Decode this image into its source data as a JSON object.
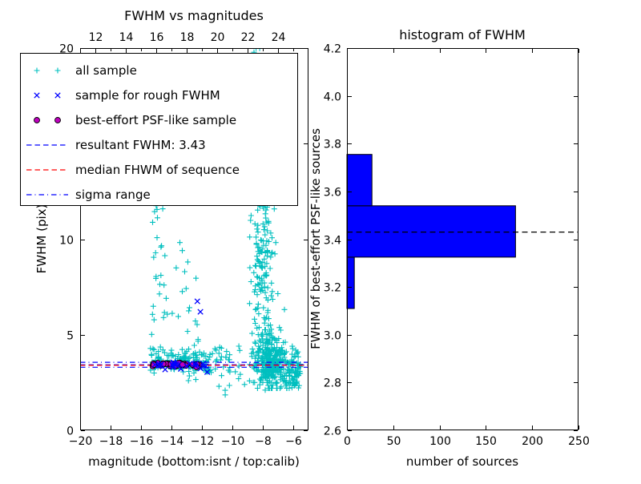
{
  "figure": {
    "bg": "#ffffff"
  },
  "chart_data": [
    {
      "type": "scatter",
      "title": "FWHM vs magnitudes",
      "xlabel": "magnitude (bottom:isnt / top:calib)",
      "ylabel": "FWHM (pix)",
      "xlim": [
        -20,
        -5
      ],
      "ylim": [
        0,
        20
      ],
      "grid": false,
      "x_ticks": [
        {
          "v": -20,
          "label": "−20"
        },
        {
          "v": -18,
          "label": "−18"
        },
        {
          "v": -16,
          "label": "−16"
        },
        {
          "v": -14,
          "label": "−14"
        },
        {
          "v": -12,
          "label": "−12"
        },
        {
          "v": -10,
          "label": "−10"
        },
        {
          "v": -8,
          "label": "−8"
        },
        {
          "v": -6,
          "label": "−6"
        }
      ],
      "y_ticks": [
        {
          "v": 0,
          "label": "0"
        },
        {
          "v": 5,
          "label": "5"
        },
        {
          "v": 10,
          "label": "10"
        },
        {
          "v": 15,
          "label": "15"
        },
        {
          "v": 20,
          "label": "20"
        }
      ],
      "top_axis": {
        "offset": 31,
        "ticks": [
          {
            "v": 12,
            "label": "12"
          },
          {
            "v": 14,
            "label": "14"
          },
          {
            "v": 16,
            "label": "16"
          },
          {
            "v": 18,
            "label": "18"
          },
          {
            "v": 20,
            "label": "20"
          },
          {
            "v": 22,
            "label": "22"
          },
          {
            "v": 24,
            "label": "24"
          }
        ],
        "minor": [
          13,
          15,
          17,
          19,
          21,
          23,
          25
        ]
      },
      "legend": [
        {
          "label": "all sample",
          "marker": "plus",
          "color": "#00bfbf"
        },
        {
          "label": "sample for rough FWHM",
          "marker": "x",
          "color": "#0000ff"
        },
        {
          "label": "best-effort PSF-like sample",
          "marker": "circle",
          "color": "#bf00bf"
        },
        {
          "label": "resultant FWHM: 3.43",
          "marker": "dashed-line",
          "color": "#0000ff"
        },
        {
          "label": "median FHWM of sequence",
          "marker": "dashed-line",
          "color": "#ff0000"
        },
        {
          "label": "sigma range",
          "marker": "dashdot-line",
          "color": "#0000ff"
        }
      ],
      "hlines": [
        {
          "name": "resultant-fwhm-line",
          "y": 3.43,
          "style": "dashed",
          "color": "#0000ff"
        },
        {
          "name": "median-fwhm-line",
          "y": 3.4,
          "style": "dashed",
          "color": "#ff0000"
        },
        {
          "name": "sigma-upper-line",
          "y": 3.56,
          "style": "dashdot",
          "color": "#0000ff"
        },
        {
          "name": "sigma-lower-line",
          "y": 3.3,
          "style": "dashdot",
          "color": "#0000ff"
        }
      ],
      "resultant_fwhm": 3.43,
      "seed": 11,
      "series": [
        {
          "name": "all sample",
          "marker": "plus",
          "color": "#00bfbf",
          "clusters": [
            {
              "n": 150,
              "x": {
                "dist": "uniform",
                "min": -15.4,
                "max": -11.4
              },
              "y": {
                "dist": "normal",
                "mean": 3.55,
                "sd": 0.3,
                "clip": [
                  2.6,
                  4.8
                ]
              }
            },
            {
              "n": 26,
              "x": {
                "dist": "uniform",
                "min": -15.3,
                "max": -14.4
              },
              "y": {
                "dist": "uniform",
                "min": 3.8,
                "max": 12.0
              }
            },
            {
              "n": 18,
              "x": {
                "dist": "uniform",
                "min": -13.3,
                "max": -12.2
              },
              "y": {
                "dist": "uniform",
                "min": 3.8,
                "max": 9.8
              }
            },
            {
              "n": 6,
              "x": {
                "dist": "uniform",
                "min": -14.4,
                "max": -13.3
              },
              "y": {
                "dist": "uniform",
                "min": 4.0,
                "max": 11.5
              }
            },
            {
              "n": 260,
              "x": {
                "dist": "normal",
                "mean": -7.6,
                "sd": 0.5
              },
              "y": {
                "dist": "normal",
                "mean": 3.6,
                "sd": 0.7,
                "clip": [
                  2.2,
                  6.0
                ]
              }
            },
            {
              "n": 160,
              "x": {
                "dist": "normal",
                "mean": -8.0,
                "sd": 0.45
              },
              "y": {
                "dist": "uniform",
                "min": 5.0,
                "max": 13.0
              }
            },
            {
              "n": 70,
              "x": {
                "dist": "normal",
                "mean": -8.3,
                "sd": 0.35
              },
              "y": {
                "dist": "uniform",
                "min": 12.0,
                "max": 20.0
              }
            },
            {
              "n": 90,
              "x": {
                "dist": "uniform",
                "min": -7.2,
                "max": -5.6
              },
              "y": {
                "dist": "normal",
                "mean": 3.2,
                "sd": 0.6,
                "clip": [
                  2.2,
                  5.5
                ]
              }
            },
            {
              "n": 30,
              "x": {
                "dist": "uniform",
                "min": -6.5,
                "max": -5.4
              },
              "y": {
                "dist": "uniform",
                "min": 2.2,
                "max": 3.6
              }
            },
            {
              "n": 30,
              "x": {
                "dist": "uniform",
                "min": -11.4,
                "max": -9.2
              },
              "y": {
                "dist": "normal",
                "mean": 3.5,
                "sd": 0.5,
                "clip": [
                  2.4,
                  5.5
                ]
              }
            },
            {
              "n": 5,
              "x": {
                "dist": "uniform",
                "min": -11.5,
                "max": -7.0
              },
              "y": {
                "dist": "uniform",
                "min": 1.8,
                "max": 2.4
              }
            }
          ]
        },
        {
          "name": "sample for rough FWHM",
          "marker": "x",
          "color": "#0000ff",
          "clusters": [
            {
              "n": 26,
              "x": {
                "dist": "uniform",
                "min": -15.2,
                "max": -11.6
              },
              "y": {
                "dist": "normal",
                "mean": 3.45,
                "sd": 0.1
              }
            }
          ],
          "points": [
            [
              -12.3,
              6.75
            ],
            [
              -12.1,
              6.2
            ],
            [
              -11.65,
              3.05
            ]
          ]
        },
        {
          "name": "best-effort PSF-like sample",
          "marker": "circle",
          "color": "#bf00bf",
          "edge": "#000000",
          "clusters": [
            {
              "n": 34,
              "x": {
                "dist": "uniform",
                "min": -15.25,
                "max": -11.9
              },
              "y": {
                "dist": "normal",
                "mean": 3.43,
                "sd": 0.055
              }
            }
          ]
        }
      ]
    },
    {
      "type": "bar",
      "orientation": "horizontal",
      "title": "histogram of FWHM",
      "xlabel": "number of sources",
      "ylabel": "FWHM of best-effort PSF-like sources",
      "xlim": [
        0,
        250
      ],
      "ylim": [
        2.6,
        4.2
      ],
      "grid": false,
      "x_ticks": [
        {
          "v": 0,
          "label": "0"
        },
        {
          "v": 50,
          "label": "50"
        },
        {
          "v": 100,
          "label": "100"
        },
        {
          "v": 150,
          "label": "150"
        },
        {
          "v": 200,
          "label": "200"
        },
        {
          "v": 250,
          "label": "250"
        }
      ],
      "y_ticks": [
        {
          "v": 2.6,
          "label": "2.6"
        },
        {
          "v": 2.8,
          "label": "2.8"
        },
        {
          "v": 3.0,
          "label": "3.0"
        },
        {
          "v": 3.2,
          "label": "3.2"
        },
        {
          "v": 3.4,
          "label": "3.4"
        },
        {
          "v": 3.6,
          "label": "3.6"
        },
        {
          "v": 3.8,
          "label": "3.8"
        },
        {
          "v": 4.0,
          "label": "4.0"
        },
        {
          "v": 4.2,
          "label": "4.2"
        }
      ],
      "bar_color": "#0000ff",
      "bar_edge": "#000000",
      "bars": [
        {
          "from": 3.11,
          "to": 3.325,
          "count": 8
        },
        {
          "from": 3.325,
          "to": 3.54,
          "count": 182
        },
        {
          "from": 3.54,
          "to": 3.755,
          "count": 27
        }
      ],
      "median_line": {
        "y": 3.43,
        "style": "dashed",
        "color": "#000000"
      }
    }
  ]
}
